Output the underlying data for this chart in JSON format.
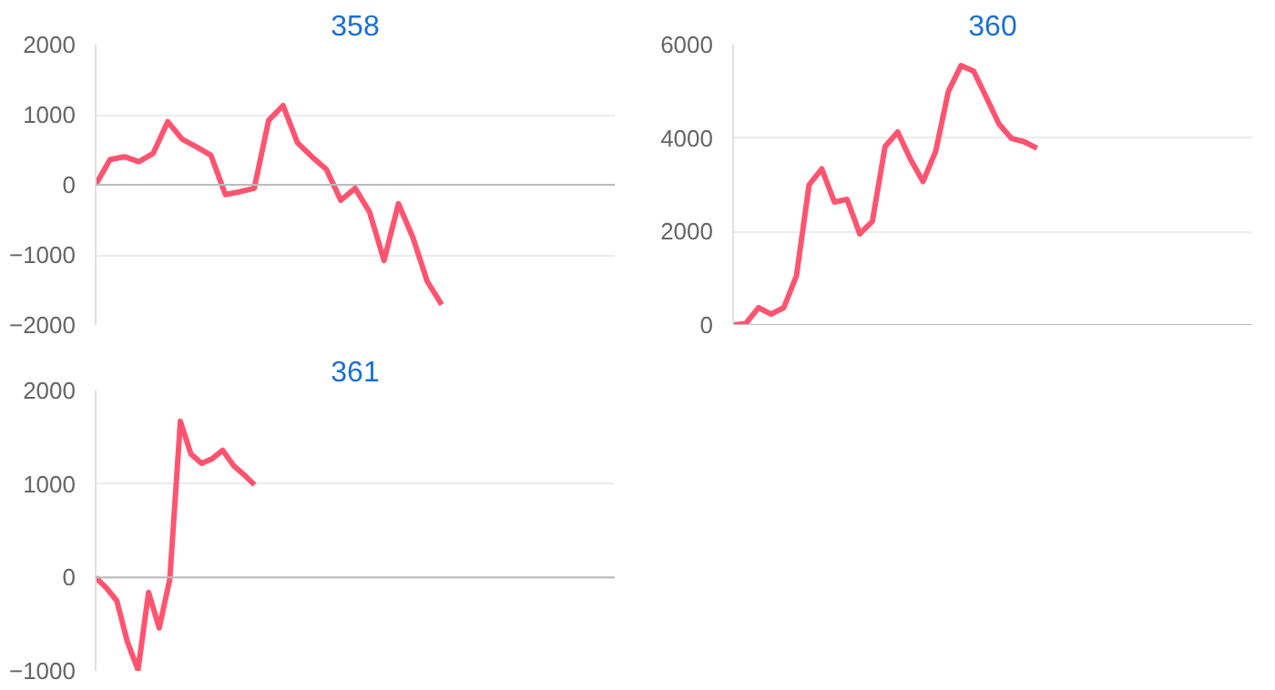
{
  "chart_data": [
    {
      "type": "line",
      "title": "358",
      "categories": [
        null,
        null,
        null,
        null,
        null,
        null,
        null,
        null,
        null,
        null,
        null,
        null,
        null,
        null,
        null,
        null,
        null,
        null,
        null,
        null,
        null,
        null,
        null,
        null,
        null,
        null,
        null,
        null,
        null,
        null,
        null,
        null,
        null,
        null,
        null,
        null,
        null
      ],
      "series": [
        {
          "color": "#ff5470",
          "values": [
            0,
            360,
            400,
            330,
            450,
            900,
            650,
            540,
            420,
            -140,
            -100,
            -50,
            920,
            1130,
            600,
            400,
            220,
            -220,
            -50,
            -390,
            -1080,
            -270,
            -750,
            -1380,
            -1710,
            null,
            null,
            null,
            null,
            null,
            null,
            null,
            null,
            null,
            null,
            null,
            null
          ]
        }
      ],
      "ylim": [
        -2000,
        2000
      ],
      "yticks": [
        -2000,
        -1000,
        0,
        1000,
        2000
      ],
      "grid": "y",
      "marker": "none",
      "line_style": "solid"
    },
    {
      "type": "line",
      "title": "360",
      "categories": [
        null,
        null,
        null,
        null,
        null,
        null,
        null,
        null,
        null,
        null,
        null,
        null,
        null,
        null,
        null,
        null,
        null,
        null,
        null,
        null,
        null,
        null,
        null,
        null,
        null,
        null,
        null,
        null,
        null,
        null,
        null,
        null,
        null,
        null,
        null,
        null,
        null,
        null,
        null,
        null,
        null,
        null
      ],
      "series": [
        {
          "color": "#ff5470",
          "values": [
            0,
            30,
            370,
            230,
            370,
            1050,
            3000,
            3340,
            2630,
            2690,
            1950,
            2220,
            3820,
            4130,
            3550,
            3070,
            3720,
            5000,
            5550,
            5430,
            4870,
            4300,
            3990,
            3920,
            3780,
            null,
            null,
            null,
            null,
            null,
            null,
            null,
            null,
            null,
            null,
            null,
            null,
            null,
            null,
            null,
            null,
            null
          ]
        }
      ],
      "ylim": [
        0,
        6000
      ],
      "yticks": [
        0,
        2000,
        4000,
        6000
      ],
      "grid": "y",
      "marker": "none",
      "line_style": "solid"
    },
    {
      "type": "line",
      "title": "361",
      "categories": [
        null,
        null,
        null,
        null,
        null,
        null,
        null,
        null,
        null,
        null,
        null,
        null,
        null,
        null,
        null,
        null,
        null,
        null,
        null,
        null,
        null,
        null,
        null,
        null,
        null,
        null,
        null,
        null,
        null,
        null,
        null,
        null,
        null,
        null,
        null,
        null,
        null,
        null,
        null,
        null,
        null,
        null,
        null,
        null,
        null,
        null,
        null,
        null,
        null,
        null
      ],
      "series": [
        {
          "color": "#ff5470",
          "values": [
            0,
            -110,
            -250,
            -690,
            -990,
            -160,
            -540,
            -20,
            1670,
            1320,
            1220,
            1270,
            1360,
            1200,
            1100,
            990,
            null,
            null,
            null,
            null,
            null,
            null,
            null,
            null,
            null,
            null,
            null,
            null,
            null,
            null,
            null,
            null,
            null,
            null,
            null,
            null,
            null,
            null,
            null,
            null,
            null,
            null,
            null,
            null,
            null,
            null,
            null,
            null,
            null,
            null
          ]
        }
      ],
      "ylim": [
        -1000,
        2000
      ],
      "yticks": [
        -1000,
        0,
        1000,
        2000
      ],
      "grid": "y",
      "marker": "none",
      "line_style": "solid"
    }
  ]
}
